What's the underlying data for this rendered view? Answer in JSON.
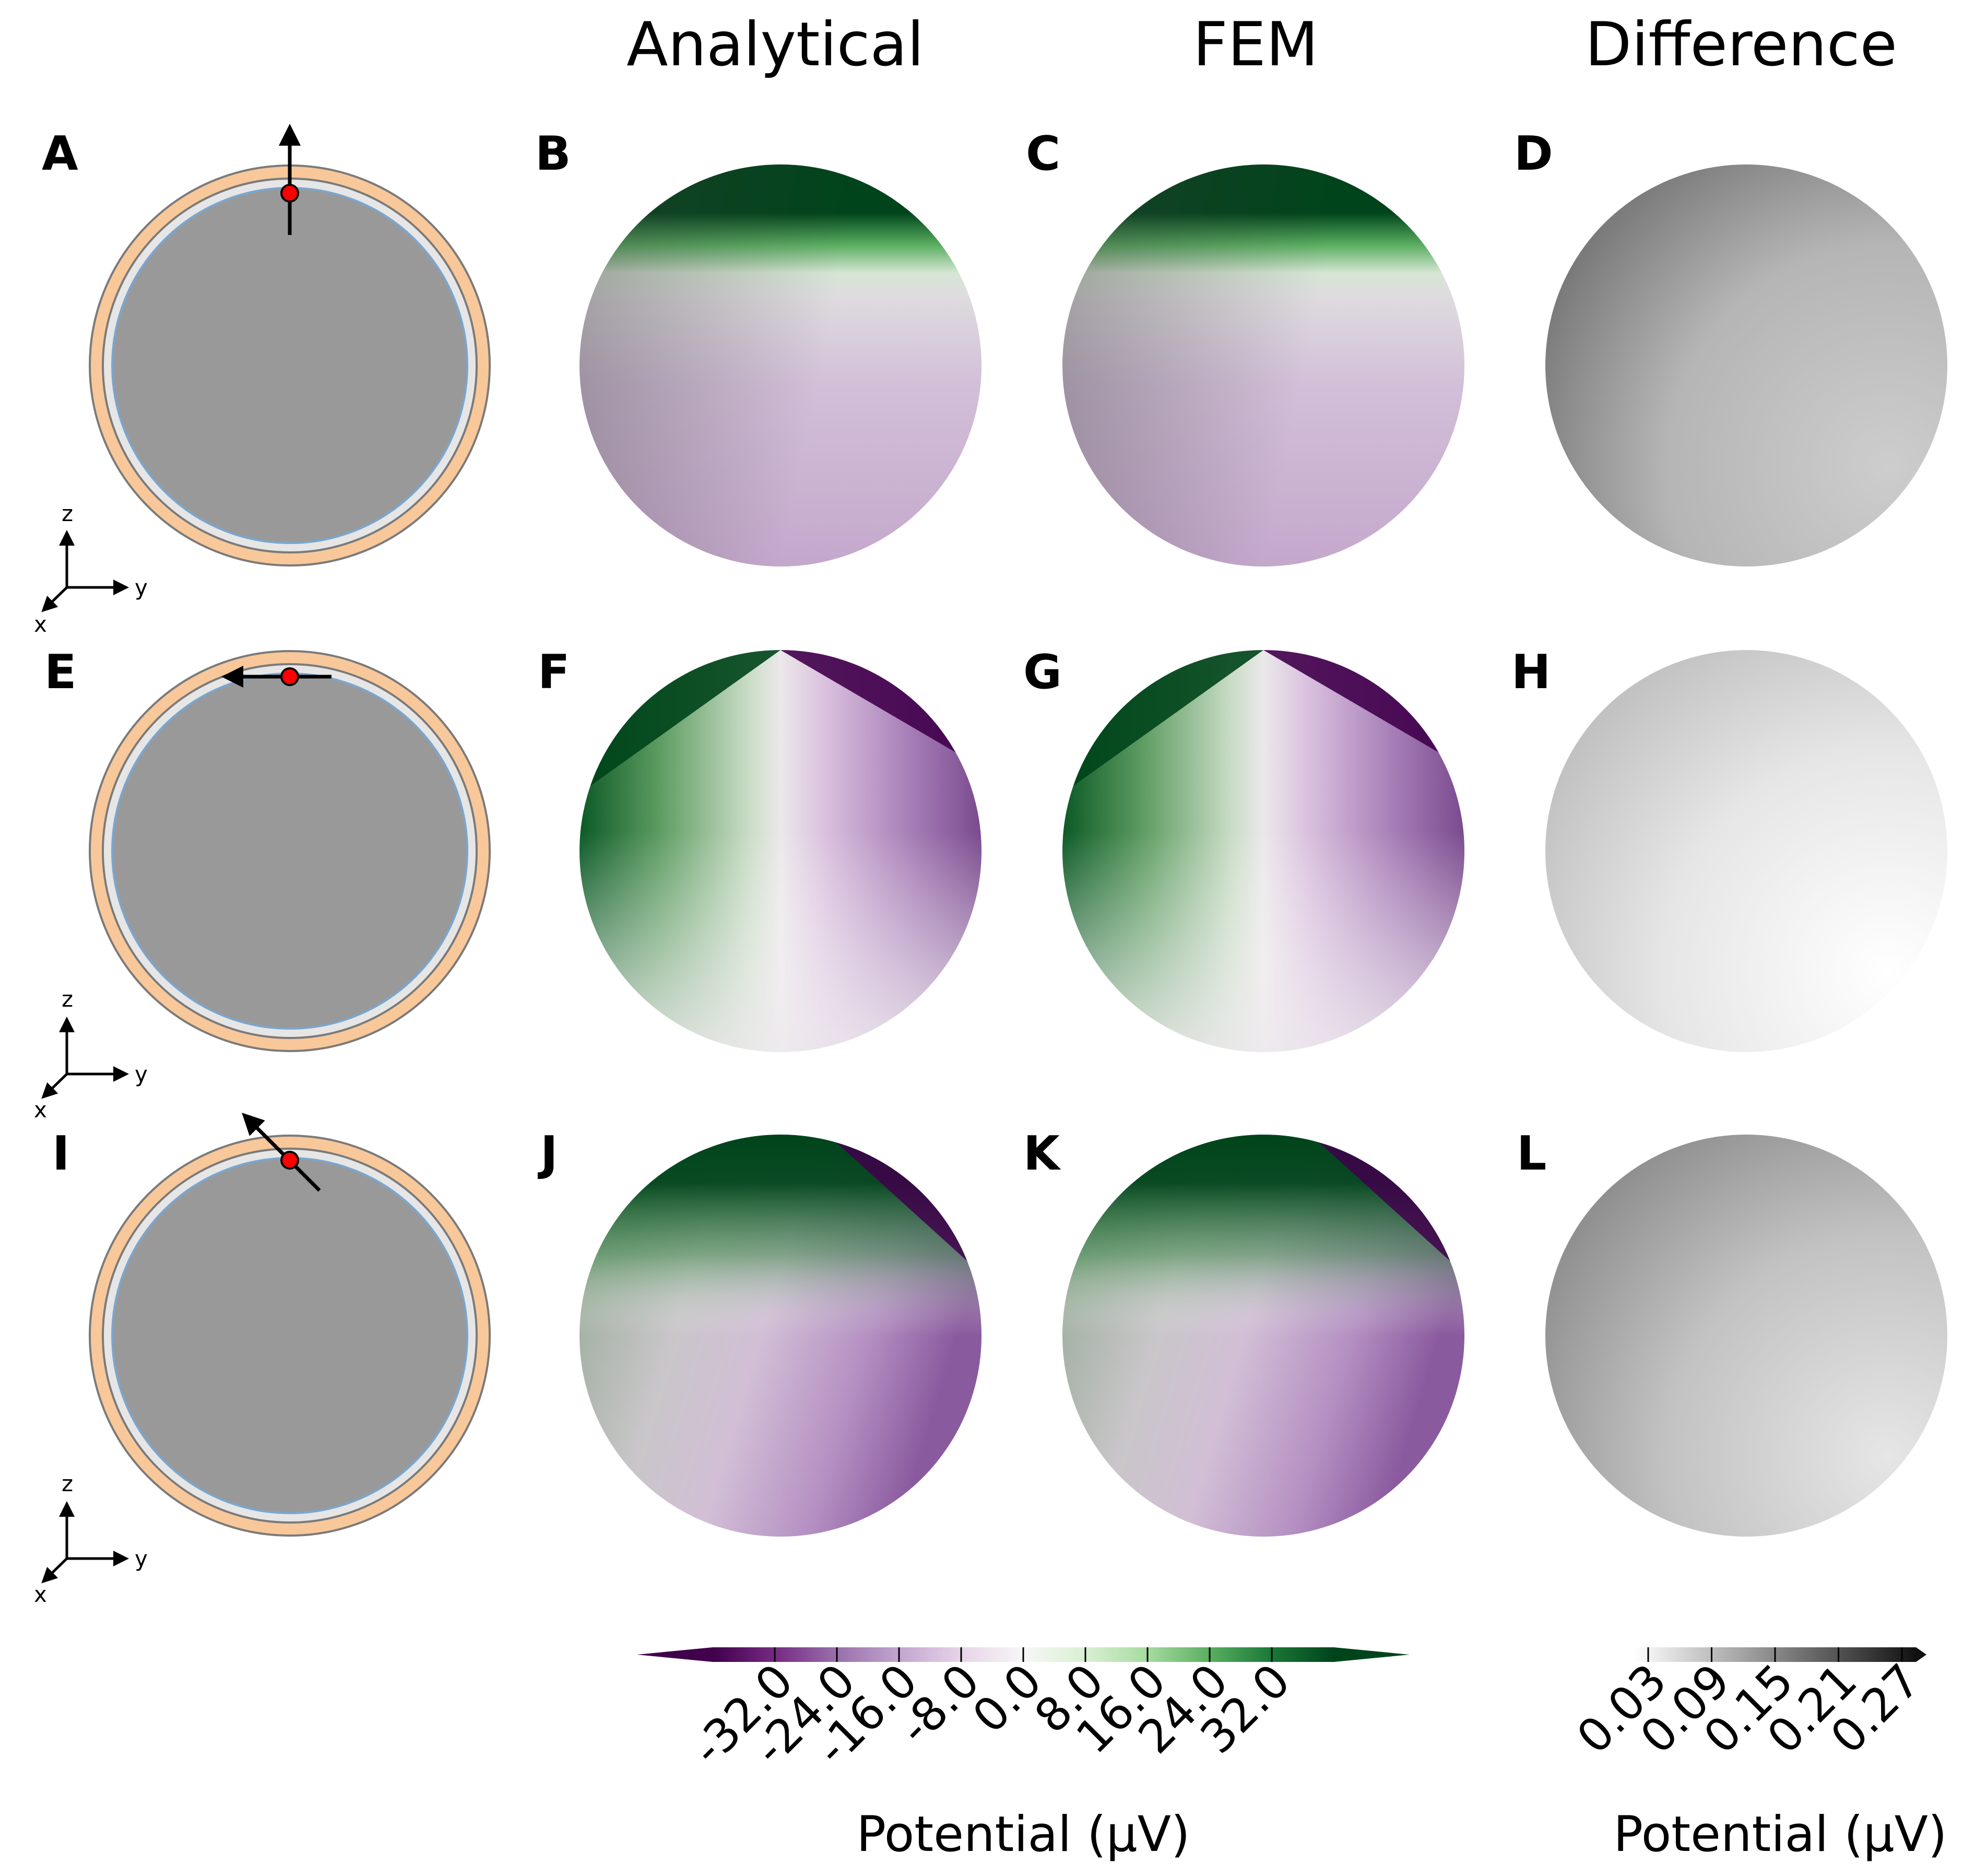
{
  "column_headers": [
    "Analytical",
    "FEM",
    "Difference"
  ],
  "panel_labels": [
    "A",
    "B",
    "C",
    "D",
    "E",
    "F",
    "G",
    "H",
    "I",
    "J",
    "K",
    "L"
  ],
  "axis_labels": {
    "z": "z",
    "y": "y",
    "x": "x"
  },
  "colorbar_potential": {
    "ticks": [
      "-32.0",
      "-24.0",
      "-16.0",
      "-8.0",
      "0.0",
      "8.0",
      "16.0",
      "24.0",
      "32.0"
    ],
    "label": "Potential (μV)",
    "colors": [
      "#40004b",
      "#762a83",
      "#9970ab",
      "#c2a5cf",
      "#e7d4e8",
      "#f7f7f7",
      "#d9f0d3",
      "#a6dba0",
      "#5aae61",
      "#1b7837",
      "#00441b"
    ]
  },
  "colorbar_difference": {
    "ticks": [
      "0.03",
      "0.09",
      "0.15",
      "0.21",
      "0.27"
    ],
    "label": "Potential (μV)",
    "colors": [
      "#ffffff",
      "#000000"
    ]
  },
  "colors": {
    "brain": "#999999",
    "csf_inner": "#7aa6cf",
    "csf": "#e6e6e6",
    "skull": "#f8c89a",
    "skull_edge": "#7a7a7a",
    "dipole": "#ff0000"
  },
  "dipole_directions": [
    "up",
    "left",
    "up-left"
  ]
}
